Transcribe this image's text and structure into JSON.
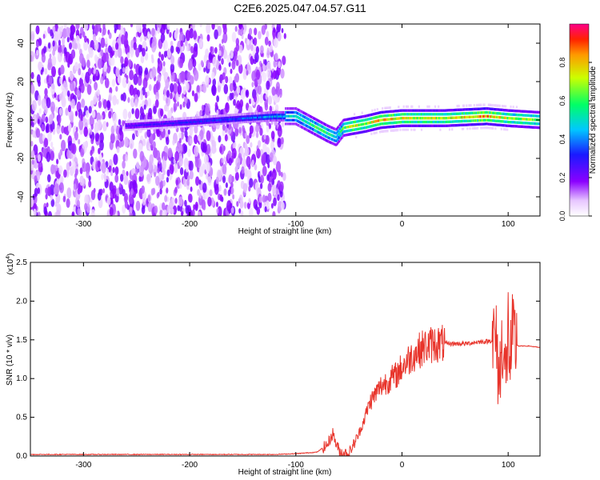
{
  "title": "C2E6.2025.047.04.57.G11",
  "colors": {
    "snr_line": "#e8342b",
    "axis": "#000000"
  },
  "chart_data": [
    {
      "type": "heatmap",
      "xlabel": "Height of straight line (km)",
      "ylabel": "Frequency (Hz)",
      "xlim": [
        -350,
        130
      ],
      "ylim": [
        -50,
        50
      ],
      "xticks": [
        -300,
        -200,
        -100,
        0,
        100
      ],
      "yticks": [
        -40,
        -20,
        0,
        20,
        40
      ],
      "colorbar": {
        "label": "Normalized spectral amplitude",
        "range": [
          0,
          1
        ],
        "ticks": [
          "0.0",
          "0.2",
          "0.4",
          "0.6",
          "0.8"
        ],
        "colormap": "rainbow (magenta-blue-cyan-green-yellow-red)"
      },
      "ridge": {
        "x": [
          -260,
          -200,
          -150,
          -120,
          -100,
          -90,
          -80,
          -70,
          -62,
          -55,
          -45,
          -35,
          -20,
          0,
          40,
          80,
          100,
          130
        ],
        "y": [
          -3,
          -1,
          1,
          2,
          2,
          -1,
          -4,
          -7,
          -9,
          -4,
          -3,
          -2,
          0,
          1,
          1,
          2,
          1,
          0
        ],
        "amplitude": [
          0.25,
          0.3,
          0.35,
          0.45,
          0.5,
          0.55,
          0.6,
          0.6,
          0.5,
          0.6,
          0.75,
          0.7,
          0.8,
          0.75,
          0.7,
          0.85,
          0.7,
          0.65
        ]
      },
      "noise_region": {
        "x": [
          -350,
          -110
        ],
        "y": [
          -50,
          50
        ],
        "amplitude": 0.2
      }
    },
    {
      "type": "line",
      "xlabel": "Height of straight line (km)",
      "ylabel": "SNR (10 * v/v)",
      "yscale_label": "(x10",
      "yscale_exp": "4",
      "yscale_close": ")",
      "xlim": [
        -350,
        130
      ],
      "ylim": [
        0,
        2.5
      ],
      "xticks": [
        -300,
        -200,
        -100,
        0,
        100
      ],
      "yticks": [
        "0.0",
        "0.5",
        "1.0",
        "1.5",
        "2.0",
        "2.5"
      ],
      "series": [
        {
          "x": [
            -350,
            -300,
            -250,
            -200,
            -150,
            -120,
            -100,
            -80,
            -70,
            -65,
            -62,
            -58,
            -50,
            -40,
            -35,
            -30,
            -25,
            -20,
            -15,
            -10,
            -5,
            0,
            10,
            20,
            30,
            40,
            50,
            60,
            70,
            80,
            88,
            92,
            95,
            98,
            100,
            102,
            104,
            106,
            110,
            120,
            130
          ],
          "y": [
            0.02,
            0.02,
            0.02,
            0.02,
            0.02,
            0.02,
            0.03,
            0.05,
            0.15,
            0.3,
            0.15,
            0.05,
            0.03,
            0.3,
            0.5,
            0.7,
            0.8,
            0.9,
            0.95,
            1.0,
            1.05,
            1.15,
            1.3,
            1.4,
            1.45,
            1.45,
            1.45,
            1.45,
            1.47,
            1.48,
            1.5,
            1.0,
            1.6,
            0.9,
            1.7,
            1.2,
            1.5,
            1.45,
            1.42,
            1.42,
            1.4
          ]
        }
      ]
    }
  ]
}
